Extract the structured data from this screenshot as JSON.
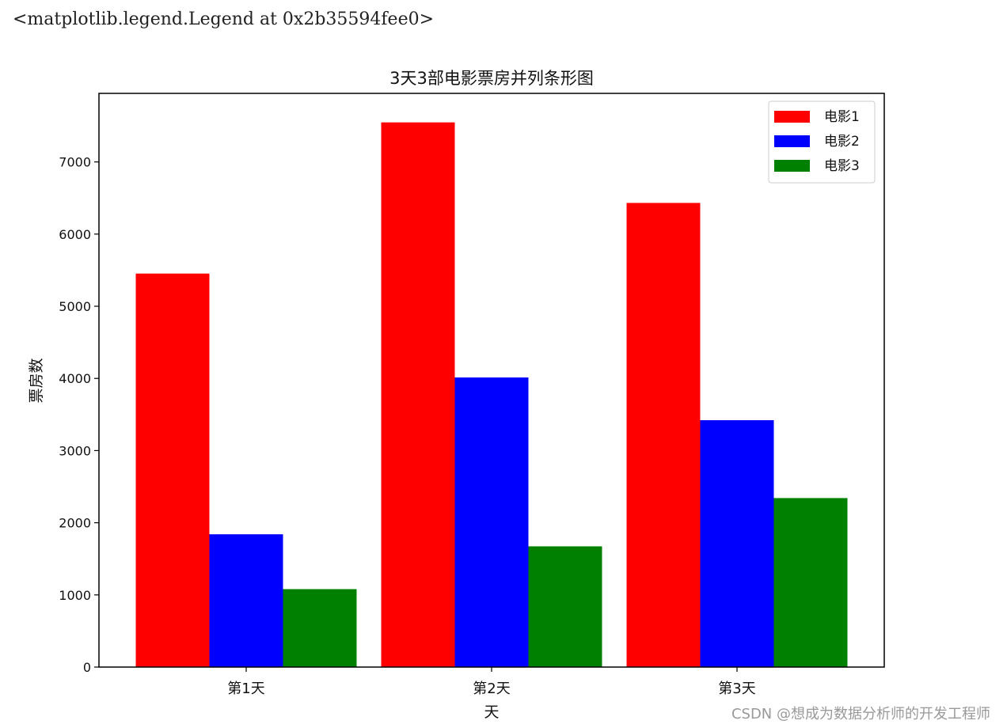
{
  "output_repr": "<matplotlib.legend.Legend at 0x2b35594fee0>",
  "watermark": "CSDN @想成为数据分析师的开发工程师",
  "chart_data": {
    "type": "bar",
    "title": "3天3部电影票房并列条形图",
    "xlabel": "天",
    "ylabel": "票房数",
    "categories": [
      "第1天",
      "第2天",
      "第3天"
    ],
    "series": [
      {
        "name": "电影1",
        "color": "#ff0000",
        "values": [
          5453,
          7548,
          6432
        ]
      },
      {
        "name": "电影2",
        "color": "#0000ff",
        "values": [
          1840,
          4013,
          3421
        ]
      },
      {
        "name": "电影3",
        "color": "#008000",
        "values": [
          1080,
          1673,
          2342
        ]
      }
    ],
    "ylim": [
      0,
      7950
    ],
    "yticks": [
      0,
      1000,
      2000,
      3000,
      4000,
      5000,
      6000,
      7000
    ],
    "legend_position": "upper right",
    "grid": false
  }
}
